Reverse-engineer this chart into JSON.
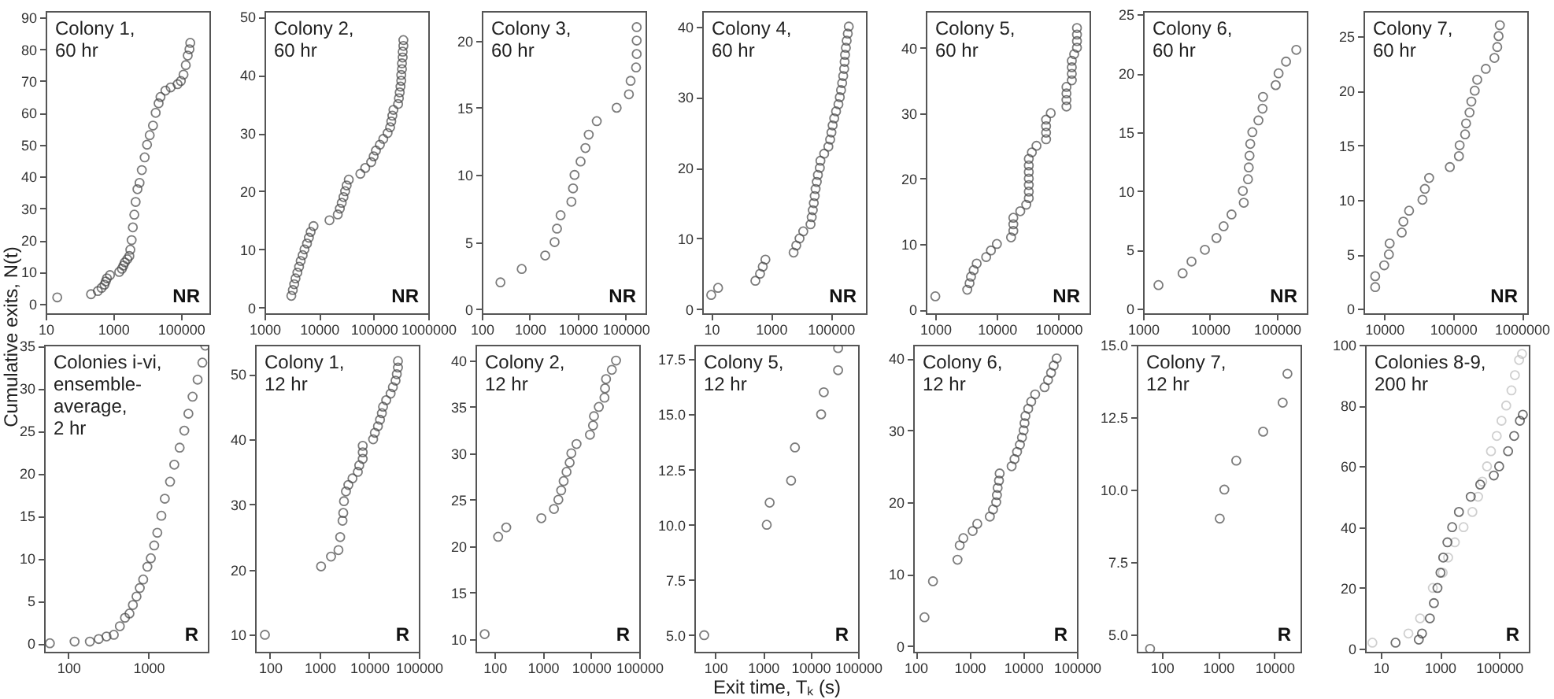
{
  "chart_data": [
    {
      "type": "scatter",
      "title": "Colony 1, 60 hr",
      "ylabel": "Cumulative exits, N(t)",
      "annotations": [
        "NR"
      ],
      "log": "x",
      "marker": "circle",
      "xlim": [
        10,
        700000
      ],
      "ylim": [
        -3,
        92
      ],
      "xticks": [
        10,
        1000,
        100000
      ],
      "yticks": [
        0,
        10,
        20,
        30,
        40,
        50,
        60,
        70,
        80,
        90
      ],
      "series": [
        {
          "color": "#444444",
          "x": [
            22,
            220,
            350,
            450,
            550,
            600,
            650,
            800,
            1500,
            1800,
            2000,
            2200,
            2600,
            3000,
            3200,
            3500,
            3800,
            4200,
            4600,
            5200,
            6000,
            7000,
            8500,
            10000,
            12000,
            15000,
            18000,
            22000,
            25000,
            35000,
            50000,
            80000,
            100000,
            120000,
            140000,
            160000,
            180000,
            190000
          ],
          "values": [
            2,
            3,
            4,
            5,
            6,
            7,
            8,
            9,
            10,
            11,
            12,
            13,
            14,
            15,
            17,
            20,
            24,
            28,
            32,
            36,
            38,
            42,
            46,
            50,
            53,
            56,
            60,
            63,
            65,
            67,
            68,
            69,
            70,
            72,
            75,
            78,
            80,
            82
          ]
        }
      ]
    },
    {
      "type": "scatter",
      "title": "Colony 2, 60 hr",
      "annotations": [
        "NR"
      ],
      "log": "x",
      "marker": "circle",
      "xlim": [
        1000,
        1000000
      ],
      "ylim": [
        -1,
        51
      ],
      "xticks": [
        1000,
        10000,
        100000,
        1000000
      ],
      "yticks": [
        0,
        10,
        20,
        30,
        40,
        50
      ],
      "series": [
        {
          "color": "#444444",
          "x": [
            3100,
            3300,
            3500,
            3700,
            4000,
            4300,
            4600,
            5000,
            5400,
            6000,
            6500,
            7000,
            7900,
            15500,
            22000,
            24000,
            26000,
            28000,
            30000,
            32000,
            35000,
            57000,
            70000,
            90000,
            100000,
            110000,
            130000,
            150000,
            180000,
            200000,
            210000,
            220000,
            230000,
            280000,
            290000,
            300000,
            310000,
            320000,
            320000,
            330000,
            330000,
            340000,
            340000,
            350000,
            350000
          ],
          "values": [
            2,
            3,
            4,
            5,
            6,
            7,
            8,
            9,
            10,
            11,
            12,
            13,
            14,
            15,
            16,
            17,
            18,
            19,
            20,
            21,
            22,
            23,
            24,
            25,
            26,
            27,
            28,
            29,
            30,
            31,
            32,
            33,
            34,
            35,
            36,
            37,
            38,
            39,
            40,
            41,
            42,
            43,
            44,
            45,
            46
          ]
        }
      ]
    },
    {
      "type": "scatter",
      "title": "Colony 3, 60 hr",
      "annotations": [
        "NR"
      ],
      "log": "x",
      "marker": "circle",
      "xlim": [
        100,
        260000
      ],
      "ylim": [
        -0.3,
        22.2
      ],
      "xticks": [
        100,
        1000,
        10000,
        100000
      ],
      "yticks": [
        0,
        5,
        10,
        15,
        20
      ],
      "series": [
        {
          "color": "#444444",
          "x": [
            245,
            680,
            2100,
            3300,
            3700,
            4400,
            7400,
            8000,
            8600,
            11500,
            14500,
            17000,
            25000,
            65000,
            117000,
            127000,
            165000,
            170000,
            170000,
            170000
          ],
          "values": [
            2,
            3,
            4,
            5,
            6,
            7,
            8,
            9,
            10,
            11,
            12,
            13,
            14,
            15,
            16,
            17,
            18,
            19,
            20,
            21
          ]
        }
      ]
    },
    {
      "type": "scatter",
      "title": "Colony 4, 60 hr",
      "annotations": [
        "NR"
      ],
      "log": "x",
      "marker": "circle",
      "xlim": [
        5,
        1500000
      ],
      "ylim": [
        -0.6,
        42.2
      ],
      "xticks": [
        10,
        1000,
        100000
      ],
      "yticks": [
        0,
        10,
        20,
        30,
        40
      ],
      "series": [
        {
          "color": "#444444",
          "x": [
            10,
            17,
            300,
            430,
            530,
            650,
            5700,
            7000,
            9000,
            12000,
            21000,
            23000,
            25000,
            27000,
            29000,
            31000,
            34000,
            37000,
            43000,
            45000,
            60000,
            83000,
            95000,
            105000,
            115000,
            130000,
            150000,
            180000,
            200000,
            220000,
            240000,
            260000,
            280000,
            290000,
            300000,
            320000,
            340000,
            370000,
            400000
          ],
          "values": [
            2,
            3,
            4,
            5,
            6,
            7,
            8,
            9,
            10,
            11,
            12,
            13,
            14,
            15,
            16,
            17,
            18,
            19,
            20,
            21,
            22,
            23,
            24,
            25,
            26,
            27,
            28,
            29,
            30,
            31,
            32,
            33,
            34,
            35,
            36,
            37,
            38,
            39,
            40
          ]
        }
      ]
    },
    {
      "type": "scatter",
      "title": "Colony 5, 60 hr",
      "annotations": [
        "NR"
      ],
      "log": "x",
      "marker": "circle",
      "xlim": [
        700,
        320000
      ],
      "ylim": [
        -0.6,
        45.6
      ],
      "xticks": [
        1000,
        10000,
        100000
      ],
      "yticks": [
        0,
        10,
        20,
        30,
        40
      ],
      "series": [
        {
          "color": "#444444",
          "x": [
            1000,
            3300,
            3600,
            3800,
            4200,
            4700,
            6700,
            8000,
            10000,
            17000,
            18500,
            18500,
            18500,
            24000,
            30000,
            33000,
            33000,
            33000,
            33000,
            33000,
            33000,
            33000,
            37000,
            44000,
            63000,
            63000,
            63000,
            63000,
            75000,
            135000,
            135000,
            135000,
            135000,
            165000,
            165000,
            165000,
            165000,
            180000,
            200000,
            200000,
            200000,
            200000
          ],
          "values": [
            2,
            3,
            4,
            5,
            6,
            7,
            8,
            9,
            10,
            11,
            12,
            13,
            14,
            15,
            16,
            17,
            18,
            19,
            20,
            21,
            22,
            23,
            24,
            25,
            26,
            27,
            28,
            29,
            30,
            31,
            32,
            33,
            34,
            35,
            36,
            37,
            38,
            39,
            40,
            41,
            42,
            43
          ]
        }
      ]
    },
    {
      "type": "scatter",
      "title": "Colony 6, 60 hr",
      "annotations": [
        "NR"
      ],
      "log": "x",
      "marker": "circle",
      "xlim": [
        1000,
        280000
      ],
      "ylim": [
        -0.4,
        25.3
      ],
      "xticks": [
        1000,
        10000,
        100000
      ],
      "yticks": [
        0,
        5,
        10,
        15,
        20,
        25
      ],
      "series": [
        {
          "color": "#444444",
          "x": [
            1700,
            3900,
            5300,
            8400,
            12500,
            16000,
            21000,
            32000,
            31000,
            37000,
            38000,
            39000,
            40000,
            43000,
            53000,
            61000,
            62000,
            96000,
            106000,
            137000,
            195000
          ],
          "values": [
            2,
            3,
            4,
            5,
            6,
            7,
            8,
            9,
            10,
            11,
            12,
            13,
            14,
            15,
            16,
            17,
            18,
            19,
            20,
            21,
            22
          ]
        }
      ]
    },
    {
      "type": "scatter",
      "title": "Colony 7, 60 hr",
      "annotations": [
        "NR"
      ],
      "log": "x",
      "marker": "circle",
      "xlim": [
        5000,
        1200000
      ],
      "ylim": [
        -0.4,
        27.3
      ],
      "xticks": [
        10000,
        100000,
        1000000
      ],
      "yticks": [
        0,
        5,
        10,
        15,
        20,
        25
      ],
      "series": [
        {
          "color": "#444444",
          "x": [
            7400,
            7400,
            10000,
            11700,
            12000,
            18000,
            19000,
            23000,
            36000,
            39000,
            45000,
            90000,
            122000,
            125000,
            150000,
            155000,
            174000,
            185000,
            207000,
            225000,
            300000,
            400000,
            440000,
            460000,
            480000
          ],
          "values": [
            2,
            3,
            4,
            5,
            6,
            7,
            8,
            9,
            10,
            11,
            12,
            13,
            14,
            15,
            16,
            17,
            18,
            19,
            20,
            21,
            22,
            23,
            24,
            25,
            26
          ]
        }
      ]
    },
    {
      "type": "scatter",
      "title": "Colonies i-vi, ensemble-average, 2 hr",
      "annotations": [
        "R"
      ],
      "log": "x",
      "marker": "circle",
      "xlim": [
        50,
        5500
      ],
      "ylim": [
        -1,
        35.1
      ],
      "xticks": [
        100,
        1000
      ],
      "yticks": [
        0,
        5,
        10,
        15,
        20,
        25,
        30,
        35
      ],
      "series": [
        {
          "color": "#444444",
          "x": [
            59,
            120,
            186,
            240,
            300,
            370,
            440,
            510,
            580,
            640,
            710,
            780,
            860,
            970,
            1070,
            1180,
            1290,
            1450,
            1600,
            1860,
            2100,
            2450,
            2800,
            3150,
            3550,
            4100,
            4700,
            5100
          ],
          "values": [
            0,
            0.2,
            0.2,
            0.5,
            0.8,
            1,
            2,
            3,
            3.5,
            4.5,
            5.5,
            6.5,
            7.5,
            9,
            10,
            11.5,
            13,
            15,
            17,
            19,
            21,
            23,
            25,
            27,
            29,
            31,
            33,
            35
          ]
        }
      ]
    },
    {
      "type": "scatter",
      "title": "Colony 1, 12 hr",
      "annotations": [
        "R"
      ],
      "log": "x",
      "marker": "circle",
      "xlim": [
        50,
        100000
      ],
      "ylim": [
        7.4,
        54.5
      ],
      "xticks": [
        100,
        1000,
        10000,
        100000
      ],
      "yticks": [
        10,
        20,
        30,
        40,
        50
      ],
      "series": [
        {
          "color": "#444444",
          "x": [
            79,
            1070,
            1700,
            2400,
            2600,
            2900,
            3000,
            3100,
            3400,
            3800,
            4600,
            5900,
            6300,
            7400,
            7400,
            7400,
            12000,
            13000,
            15000,
            16500,
            18000,
            19000,
            22000,
            27000,
            30000,
            34000,
            36000,
            38000,
            38000
          ],
          "values": [
            10,
            20.5,
            22,
            23,
            25,
            27.5,
            28.7,
            30.5,
            32,
            33,
            34,
            35,
            36,
            37,
            38,
            39,
            40,
            41,
            42,
            43,
            44,
            45,
            46,
            47,
            48,
            49,
            50,
            51,
            52
          ]
        }
      ]
    },
    {
      "type": "scatter",
      "title": "Colony 2, 12 hr",
      "annotations": [
        "R"
      ],
      "log": "x",
      "marker": "circle",
      "xlim": [
        40,
        100000
      ],
      "ylim": [
        8.6,
        41.7
      ],
      "xticks": [
        100,
        1000,
        10000,
        100000
      ],
      "yticks": [
        10,
        15,
        20,
        25,
        30,
        35,
        40
      ],
      "series": [
        {
          "color": "#444444",
          "x": [
            62,
            118,
            174,
            930,
            1700,
            2100,
            2400,
            2700,
            3100,
            3600,
            3900,
            5000,
            9500,
            11000,
            11500,
            14500,
            19000,
            19500,
            20500,
            27000,
            33000
          ],
          "values": [
            10.5,
            21,
            22,
            23,
            24,
            25,
            26,
            27,
            28,
            29,
            30,
            31,
            32,
            33,
            34,
            35,
            36,
            37,
            38,
            39,
            40
          ]
        }
      ]
    },
    {
      "type": "scatter",
      "title": "Colony 5, 12 hr",
      "xlabel": "Exit time, Tₖ (s)",
      "annotations": [
        "R"
      ],
      "log": "x",
      "marker": "circle",
      "xlim": [
        36,
        100000
      ],
      "ylim": [
        4.25,
        18.15
      ],
      "xticks": [
        100,
        1000,
        10000,
        100000
      ],
      "yticks": [
        {
          "value": 5,
          "label": "5.0"
        },
        7.5,
        {
          "value": 10,
          "label": "10.0"
        },
        12.5,
        {
          "value": 15,
          "label": "15.0"
        },
        17.5
      ],
      "series": [
        {
          "color": "#444444",
          "x": [
            58,
            1200,
            1380,
            3900,
            4700,
            16700,
            19000,
            38000,
            38000
          ],
          "values": [
            5,
            10,
            11,
            12,
            13.5,
            15,
            16,
            17,
            18
          ]
        }
      ]
    },
    {
      "type": "scatter",
      "title": "Colony 6, 12 hr",
      "annotations": [
        "R"
      ],
      "log": "x",
      "marker": "circle",
      "xlim": [
        90,
        100000
      ],
      "ylim": [
        -0.8,
        41.9
      ],
      "xticks": [
        100,
        1000,
        10000,
        100000
      ],
      "yticks": [
        0,
        10,
        20,
        30,
        40
      ],
      "series": [
        {
          "color": "#444444",
          "x": [
            146,
            210,
            600,
            660,
            770,
            1150,
            1400,
            2400,
            2750,
            3150,
            3250,
            3350,
            3550,
            3650,
            6100,
            6900,
            7700,
            8700,
            9500,
            10200,
            10600,
            11000,
            12400,
            14100,
            16700,
            25000,
            29000,
            33000,
            37000,
            42000
          ],
          "values": [
            4,
            9,
            12,
            14,
            15,
            16,
            17,
            18,
            19,
            20,
            21,
            22,
            23,
            24,
            25,
            26,
            27,
            28,
            29,
            30,
            31,
            32,
            33,
            34,
            35,
            36,
            37,
            38,
            39,
            40
          ]
        }
      ]
    },
    {
      "type": "scatter",
      "title": "Colony 7, 12 hr",
      "annotations": [
        "R"
      ],
      "log": "x",
      "marker": "circle",
      "xlim": [
        36,
        29000
      ],
      "ylim": [
        4.4,
        15
      ],
      "xticks": [
        100,
        1000,
        10000
      ],
      "yticks": [
        {
          "value": 5,
          "label": "5.0"
        },
        7.5,
        {
          "value": 10,
          "label": "10.0"
        },
        12.5,
        {
          "value": 15,
          "label": "15.0"
        }
      ],
      "series": [
        {
          "color": "#444444",
          "x": [
            62,
            1070,
            1290,
            2100,
            6300,
            14000,
            17000
          ],
          "values": [
            4.5,
            9,
            10,
            11,
            12,
            13,
            14
          ]
        }
      ]
    },
    {
      "type": "scatter",
      "title": "Colonies 8-9, 200 hr",
      "annotations": [
        "R"
      ],
      "log": "x",
      "marker": "circle",
      "xlim": [
        3,
        1000000
      ],
      "ylim": [
        -1,
        100
      ],
      "xticks": [
        10,
        1000,
        100000
      ],
      "yticks": [
        0,
        20,
        40,
        60,
        80,
        100
      ],
      "series": [
        {
          "color": "#bbbbbb",
          "x": [
            5.3,
            87,
            215,
            580,
            1250,
            1900,
            3200,
            6300,
            12500,
            19500,
            27000,
            39000,
            53000,
            83000,
            120000,
            173000,
            260000,
            340000,
            470000,
            590000
          ],
          "values": [
            2,
            5,
            10,
            20,
            25,
            30,
            35,
            40,
            45,
            50,
            55,
            60,
            65,
            70,
            75,
            80,
            85,
            90,
            95,
            97
          ]
        },
        {
          "color": "#333333",
          "x": [
            32,
            195,
            250,
            460,
            630,
            830,
            1050,
            1300,
            1800,
            2600,
            4400,
            11000,
            23000,
            66000,
            100000,
            200000,
            320000,
            500000,
            630000
          ],
          "values": [
            2,
            3,
            5,
            10,
            15,
            20,
            25,
            30,
            35,
            40,
            45,
            50,
            54,
            57,
            60,
            65,
            70,
            75,
            77
          ]
        }
      ]
    }
  ]
}
